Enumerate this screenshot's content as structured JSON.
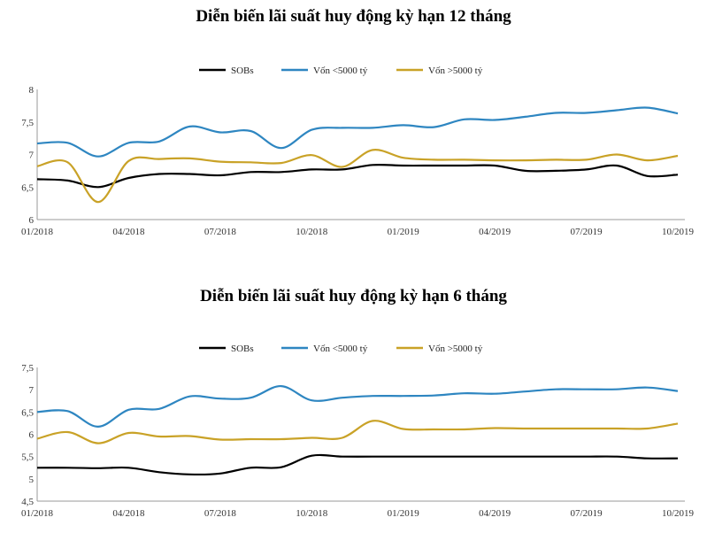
{
  "chart_data": [
    {
      "type": "line",
      "title": "Diễn biến lãi suất huy động kỳ hạn 12 tháng",
      "xlabel": "",
      "ylabel": "",
      "ylim": [
        6,
        8
      ],
      "yticks": [
        "6",
        "6,5",
        "7",
        "7,5",
        "8"
      ],
      "x_tick_labels": [
        "01/2018",
        "04/2018",
        "07/2018",
        "10/2018",
        "01/2019",
        "04/2019",
        "07/2019",
        "10/2019"
      ],
      "legend_position": "top-center",
      "grid": false,
      "x": [
        "01/2018",
        "02/2018",
        "03/2018",
        "04/2018",
        "05/2018",
        "06/2018",
        "07/2018",
        "08/2018",
        "09/2018",
        "10/2018",
        "11/2018",
        "12/2018",
        "01/2019",
        "02/2019",
        "03/2019",
        "04/2019",
        "05/2019",
        "06/2019",
        "07/2019",
        "08/2019",
        "09/2019",
        "10/2019"
      ],
      "series": [
        {
          "name": "SOBs",
          "color": "#000000",
          "values": [
            6.62,
            6.6,
            6.5,
            6.64,
            6.7,
            6.7,
            6.68,
            6.73,
            6.73,
            6.77,
            6.77,
            6.84,
            6.83,
            6.83,
            6.83,
            6.83,
            6.75,
            6.75,
            6.77,
            6.83,
            6.67,
            6.69
          ]
        },
        {
          "name": "Vốn <5000 tỷ",
          "color": "#2E86C1",
          "values": [
            7.17,
            7.18,
            6.97,
            7.18,
            7.2,
            7.43,
            7.34,
            7.36,
            7.1,
            7.38,
            7.41,
            7.41,
            7.45,
            7.42,
            7.54,
            7.53,
            7.58,
            7.64,
            7.64,
            7.68,
            7.72,
            7.63
          ]
        },
        {
          "name": "Vốn >5000 tỷ",
          "color": "#C9A227",
          "values": [
            6.82,
            6.88,
            6.27,
            6.9,
            6.93,
            6.94,
            6.89,
            6.88,
            6.87,
            6.99,
            6.81,
            7.07,
            6.95,
            6.92,
            6.92,
            6.91,
            6.91,
            6.92,
            6.92,
            7.0,
            6.91,
            6.98
          ]
        }
      ]
    },
    {
      "type": "line",
      "title": "Diễn biến lãi suất huy động kỳ hạn 6 tháng",
      "xlabel": "",
      "ylabel": "",
      "ylim": [
        4.5,
        7.5
      ],
      "yticks": [
        "4,5",
        "5",
        "5,5",
        "6",
        "6,5",
        "7",
        "7,5"
      ],
      "x_tick_labels": [
        "01/2018",
        "04/2018",
        "07/2018",
        "10/2018",
        "01/2019",
        "04/2019",
        "07/2019",
        "10/2019"
      ],
      "legend_position": "top-center",
      "grid": false,
      "x": [
        "01/2018",
        "02/2018",
        "03/2018",
        "04/2018",
        "05/2018",
        "06/2018",
        "07/2018",
        "08/2018",
        "09/2018",
        "10/2018",
        "11/2018",
        "12/2018",
        "01/2019",
        "02/2019",
        "03/2019",
        "04/2019",
        "05/2019",
        "06/2019",
        "07/2019",
        "08/2019",
        "09/2019",
        "10/2019"
      ],
      "series": [
        {
          "name": "SOBs",
          "color": "#000000",
          "values": [
            5.25,
            5.25,
            5.24,
            5.25,
            5.15,
            5.1,
            5.12,
            5.25,
            5.26,
            5.52,
            5.5,
            5.5,
            5.5,
            5.5,
            5.5,
            5.5,
            5.5,
            5.5,
            5.5,
            5.5,
            5.46,
            5.46
          ]
        },
        {
          "name": "Vốn <5000 tỷ",
          "color": "#2E86C1",
          "values": [
            6.5,
            6.52,
            6.17,
            6.55,
            6.57,
            6.85,
            6.8,
            6.82,
            7.08,
            6.76,
            6.82,
            6.86,
            6.86,
            6.87,
            6.92,
            6.91,
            6.96,
            7.01,
            7.01,
            7.01,
            7.05,
            6.97
          ]
        },
        {
          "name": "Vốn >5000 tỷ",
          "color": "#C9A227",
          "values": [
            5.9,
            6.05,
            5.8,
            6.03,
            5.95,
            5.96,
            5.88,
            5.89,
            5.89,
            5.92,
            5.92,
            6.3,
            6.12,
            6.11,
            6.11,
            6.14,
            6.13,
            6.13,
            6.13,
            6.13,
            6.13,
            6.24
          ]
        }
      ]
    }
  ]
}
